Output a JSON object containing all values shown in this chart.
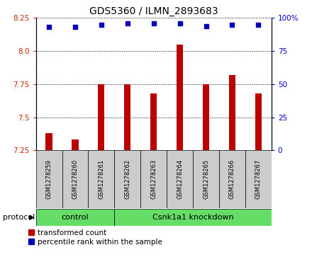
{
  "title": "GDS5360 / ILMN_2893683",
  "samples": [
    "GSM1278259",
    "GSM1278260",
    "GSM1278261",
    "GSM1278262",
    "GSM1278263",
    "GSM1278264",
    "GSM1278265",
    "GSM1278266",
    "GSM1278267"
  ],
  "transformed_counts": [
    7.38,
    7.33,
    7.75,
    7.75,
    7.68,
    8.05,
    7.75,
    7.82,
    7.68
  ],
  "percentile_ranks": [
    93,
    93,
    95,
    96,
    96,
    96,
    94,
    95,
    95
  ],
  "ylim_left": [
    7.25,
    8.25
  ],
  "ylim_right": [
    0,
    100
  ],
  "yticks_left": [
    7.25,
    7.5,
    7.75,
    8.0,
    8.25
  ],
  "yticks_right": [
    0,
    25,
    50,
    75,
    100
  ],
  "bar_color": "#bb0000",
  "dot_color": "#0000bb",
  "grid_color": "#000000",
  "control_count": 3,
  "protocol_group_color": "#66dd66",
  "sample_box_color": "#cccccc",
  "legend_items": [
    {
      "color": "#bb0000",
      "label": "transformed count"
    },
    {
      "color": "#0000bb",
      "label": "percentile rank within the sample"
    }
  ],
  "left_tick_color": "#cc2200",
  "right_tick_color": "#0000cc",
  "protocol_label": "protocol",
  "control_label": "control",
  "knockdown_label": "Csnk1a1 knockdown",
  "title_fontsize": 10,
  "tick_fontsize": 7.5,
  "sample_fontsize": 6,
  "protocol_fontsize": 8,
  "legend_fontsize": 7.5
}
